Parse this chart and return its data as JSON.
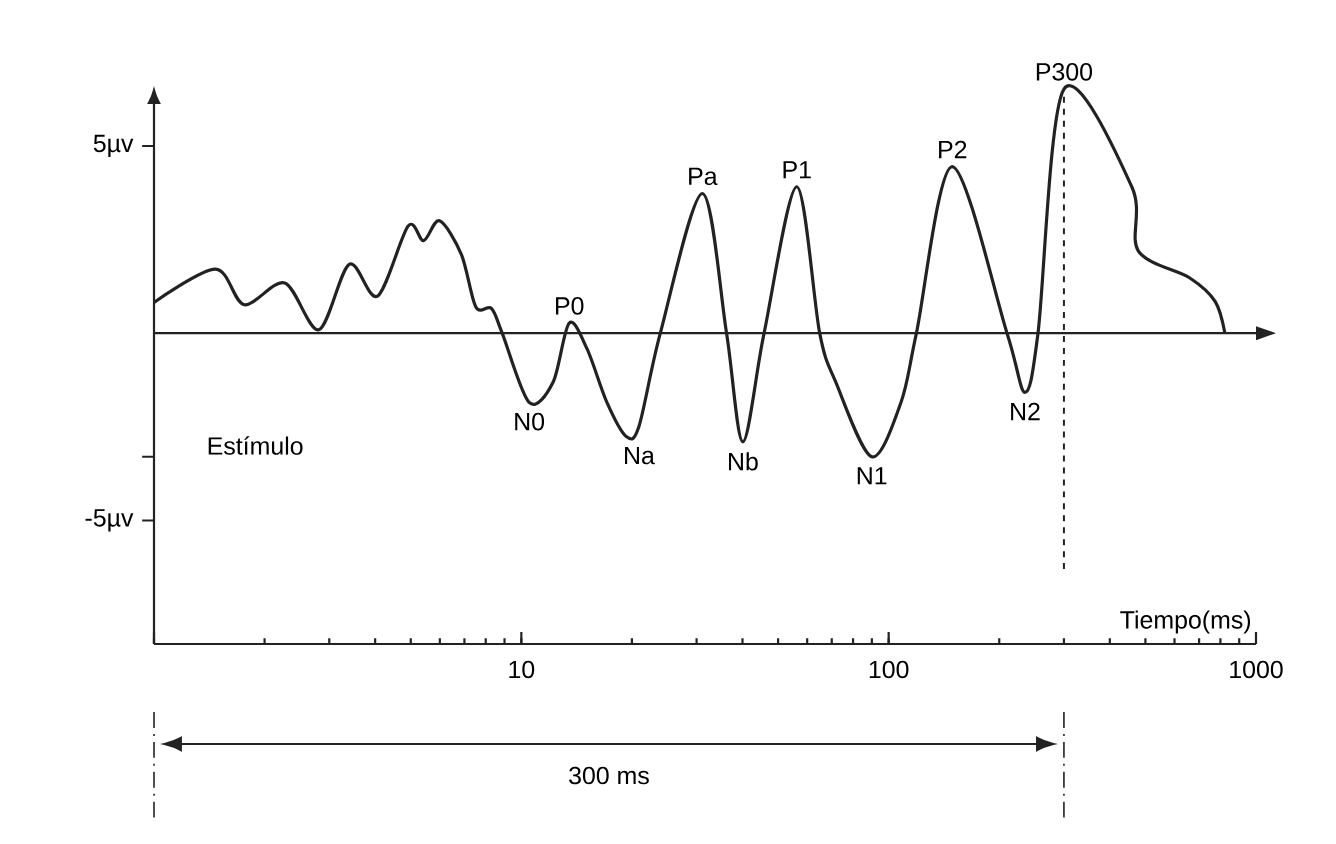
{
  "chart_data": {
    "type": "line",
    "xlabel": "Tiempo(ms)",
    "log": "x",
    "color": "#222222",
    "line_style": "solid",
    "marker": "none",
    "x": [
      1.0,
      1.47,
      1.76,
      2.27,
      2.81,
      3.4,
      4.06,
      4.92,
      5.42,
      5.99,
      6.87,
      7.52,
      8.29,
      8.87,
      10.5,
      12.2,
      13.5,
      15.1,
      17.1,
      19.3,
      20.9,
      23.9,
      31.1,
      36.2,
      40.1,
      45.8,
      56.2,
      64.9,
      71.8,
      89.9,
      108,
      119,
      149,
      210,
      235,
      255,
      300,
      459,
      478,
      659,
      774,
      823
    ],
    "values": [
      0.82,
      1.71,
      0.76,
      1.34,
      0.09,
      1.84,
      0.99,
      2.86,
      2.47,
      3.0,
      2.1,
      0.7,
      0.66,
      0,
      -1.85,
      -1.31,
      0.27,
      -0.42,
      -1.85,
      -2.76,
      -2.49,
      0,
      3.73,
      0,
      -2.9,
      0,
      3.91,
      0,
      -1.31,
      -3.3,
      -1.85,
      0,
      4.45,
      0,
      -1.58,
      0,
      6.52,
      3.91,
      2.2,
      1.48,
      0.85,
      0
    ],
    "xlim": [
      1,
      1000
    ],
    "ylim": [
      -8.3,
      6.6
    ],
    "xticks": [
      {
        "value": 1,
        "label": null
      },
      10,
      100,
      1000
    ],
    "yticks": [
      {
        "value": 5,
        "label": "5µv"
      },
      {
        "value": -3.3,
        "label": null
      },
      {
        "value": -5,
        "label": "-5µv"
      }
    ],
    "ref_lines": [
      {
        "axis": "x",
        "value": 300,
        "line_style": "dashed"
      }
    ],
    "annotations": [
      "Estímulo",
      "300 ms",
      {
        "text": "P0",
        "x": 13.5,
        "y": 0.27
      },
      {
        "text": "N0",
        "x": 10.5,
        "y": -1.85
      },
      {
        "text": "Na",
        "x": 20.9,
        "y": -2.76
      },
      {
        "text": "Pa",
        "x": 31.1,
        "y": 3.73
      },
      {
        "text": "Nb",
        "x": 40.1,
        "y": -2.9
      },
      {
        "text": "P1",
        "x": 56.2,
        "y": 3.91
      },
      {
        "text": "N1",
        "x": 89.9,
        "y": -3.3
      },
      {
        "text": "P2",
        "x": 149,
        "y": 4.45
      },
      {
        "text": "N2",
        "x": 235,
        "y": -1.58
      },
      {
        "text": "P300",
        "x": 300,
        "y": 6.52
      }
    ]
  }
}
